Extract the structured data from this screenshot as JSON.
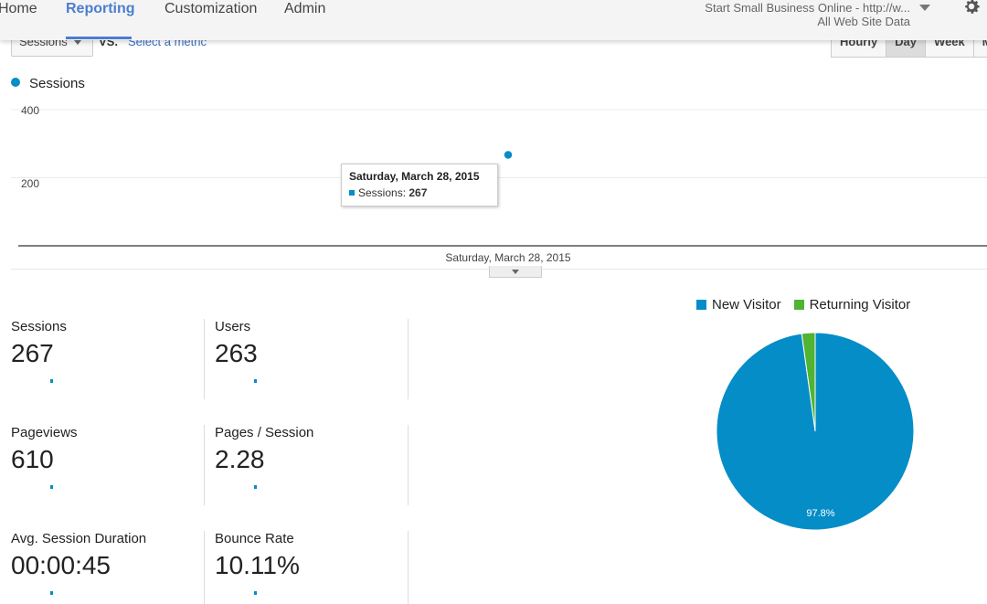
{
  "nav": {
    "items": [
      "Home",
      "Reporting",
      "Customization",
      "Admin"
    ],
    "active": "Reporting"
  },
  "account": {
    "name": "Start Small Business Online - http://w...",
    "view": "All Web Site Data"
  },
  "toolbar": {
    "metric": "Sessions",
    "vs": "VS.",
    "select_metric": "Select a metric",
    "periods": [
      "Hourly",
      "Day",
      "Week",
      "Mo"
    ],
    "selected_period": "Day"
  },
  "chart_data": {
    "type": "line",
    "series": [
      {
        "name": "Sessions",
        "values": [
          267
        ]
      }
    ],
    "x": [
      "Saturday, March 28, 2015"
    ],
    "y_ticks": [
      "400",
      "200"
    ],
    "ylim": [
      0,
      400
    ],
    "tooltip": {
      "title": "Saturday, March 28, 2015",
      "label": "Sessions:",
      "value": "267"
    },
    "color": "#058dc7",
    "grid": true
  },
  "metrics": [
    {
      "label": "Sessions",
      "value": "267"
    },
    {
      "label": "Users",
      "value": "263"
    },
    {
      "label": "Pageviews",
      "value": "610"
    },
    {
      "label": "Pages / Session",
      "value": "2.28"
    },
    {
      "label": "Avg. Session Duration",
      "value": "00:00:45"
    },
    {
      "label": "Bounce Rate",
      "value": "10.11%"
    }
  ],
  "pie": {
    "type": "pie",
    "slices": [
      {
        "name": "New Visitor",
        "value": 97.8,
        "label": "97.8%",
        "color": "#058dc7"
      },
      {
        "name": "Returning Visitor",
        "value": 2.2,
        "color": "#50b432"
      }
    ]
  }
}
